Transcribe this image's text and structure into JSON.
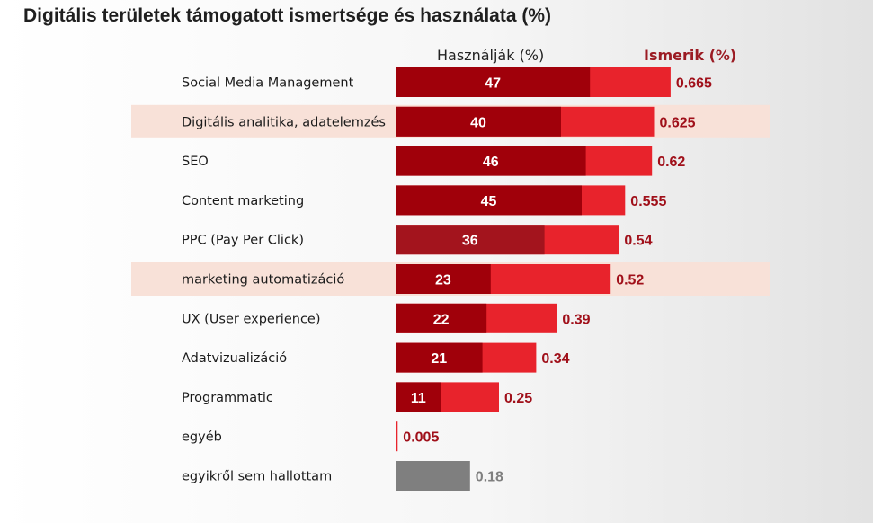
{
  "title": "Digitális területek támogatott ismertsége és használata (%)",
  "legend": {
    "used": "Használják (%)",
    "known": "Ismerik (%)"
  },
  "colors": {
    "used": "#a0000a",
    "used_alt": "#a3141d",
    "known": "#e8232c",
    "other": "#7f7f7f",
    "highlight_row": "#f8e1d8",
    "known_label": "#a0101a",
    "other_label": "#7f7f7f"
  },
  "chart_data": {
    "type": "bar",
    "orientation": "horizontal",
    "categories": [
      "Social Media Management",
      "Digitális analitika, adatelemzés",
      "SEO",
      "Content marketing",
      "PPC (Pay Per Click)",
      "marketing automatizáció",
      "UX (User experience)",
      "Adatvizualizáció",
      "Programmatic",
      "egyéb",
      "egyikről sem hallottam"
    ],
    "series": [
      {
        "name": "Használják (%)",
        "values": [
          47,
          40,
          46,
          45,
          36,
          23,
          22,
          21,
          11,
          null,
          null
        ]
      },
      {
        "name": "Ismerik (%)",
        "values": [
          0.665,
          0.625,
          0.62,
          0.555,
          0.54,
          0.52,
          0.39,
          0.34,
          0.25,
          0.005,
          0.18
        ]
      }
    ],
    "used_labels": [
      "47",
      "40",
      "46",
      "45",
      "36",
      "23",
      "22",
      "21",
      "11",
      "",
      ""
    ],
    "known_labels": [
      "0.665",
      "0.625",
      "0.62",
      "0.555",
      "0.54",
      "0.52",
      "0.39",
      "0.34",
      "0.25",
      "0.005",
      "0.18"
    ],
    "highlighted_categories": [
      "Digitális analitika, adatelemzés",
      "marketing automatizáció"
    ],
    "gray_categories": [
      "egyikről sem hallottam"
    ],
    "legend_position": "top"
  }
}
